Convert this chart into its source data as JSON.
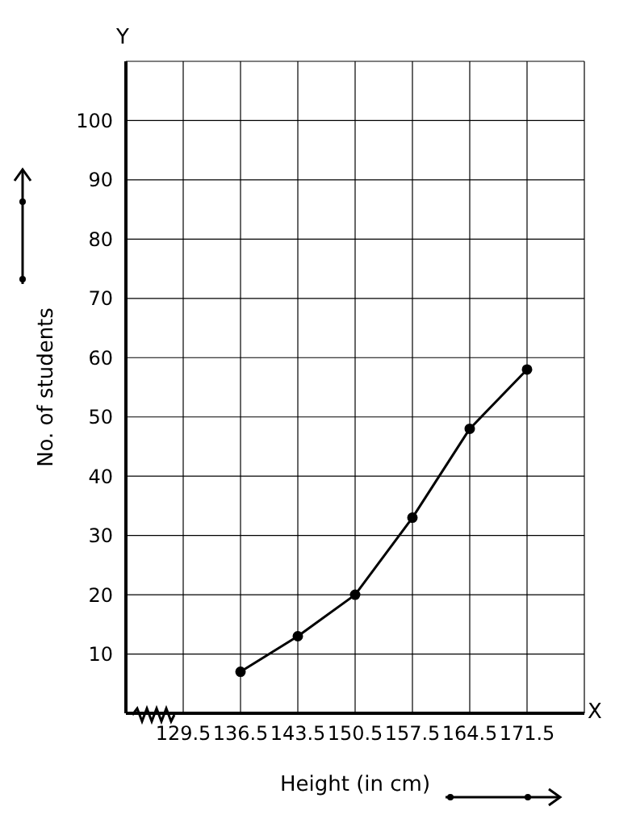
{
  "chart_data": {
    "type": "line",
    "xlabel": "Height (in cm)",
    "ylabel": "No. of students",
    "annotations": [
      "Y",
      "X"
    ],
    "x": [
      136.5,
      143.5,
      150.5,
      157.5,
      164.5,
      171.5
    ],
    "series": [
      {
        "color": "#000000",
        "values": [
          7,
          13,
          20,
          33,
          48,
          58
        ]
      }
    ],
    "xlim": [
      122.5,
      178.5
    ],
    "xticks": [
      129.5,
      136.5,
      143.5,
      150.5,
      157.5,
      164.5,
      171.5
    ],
    "ylim": [
      0,
      110
    ],
    "yticks": [
      10,
      20,
      30,
      40,
      50,
      60,
      70,
      80,
      90,
      100
    ],
    "grid": true,
    "marker": "circle",
    "line_style": "solid"
  }
}
